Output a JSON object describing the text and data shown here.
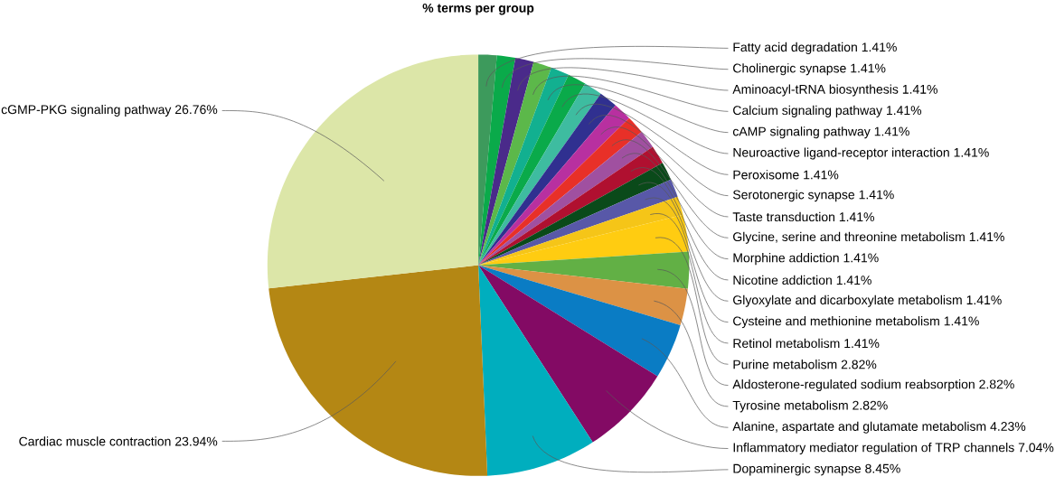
{
  "chart_data": {
    "type": "pie",
    "title": "% terms per group",
    "categories": [
      "Fatty acid degradation",
      "Cholinergic synapse",
      "Aminoacyl-tRNA biosynthesis",
      "Calcium signaling pathway",
      "cAMP signaling pathway",
      "Neuroactive ligand-receptor interaction",
      "Peroxisome",
      "Serotonergic synapse",
      "Taste transduction",
      "Glycine, serine and threonine metabolism",
      "Morphine addiction",
      "Nicotine addiction",
      "Glyoxylate and dicarboxylate metabolism",
      "Cysteine and methionine metabolism",
      "Retinol metabolism",
      "Purine metabolism",
      "Aldosterone-regulated sodium reabsorption",
      "Tyrosine metabolism",
      "Alanine, aspartate and glutamate metabolism",
      "Inflammatory mediator regulation of TRP channels",
      "Dopaminergic synapse",
      "Cardiac muscle contraction",
      "cGMP-PKG signaling pathway"
    ],
    "values": [
      1.41,
      1.41,
      1.41,
      1.41,
      1.41,
      1.41,
      1.41,
      1.41,
      1.41,
      1.41,
      1.41,
      1.41,
      1.41,
      1.41,
      1.41,
      2.82,
      2.82,
      2.82,
      4.23,
      7.04,
      8.45,
      23.94,
      26.76
    ],
    "value_labels": [
      "1.41%",
      "1.41%",
      "1.41%",
      "1.41%",
      "1.41%",
      "1.41%",
      "1.41%",
      "1.41%",
      "1.41%",
      "1.41%",
      "1.41%",
      "1.41%",
      "1.41%",
      "1.41%",
      "1.41%",
      "2.82%",
      "2.82%",
      "2.82%",
      "4.23%",
      "7.04%",
      "8.45%",
      "23.94%",
      "26.76%"
    ],
    "colors": [
      "#3d9a5c",
      "#0aaa4a",
      "#4a2a8a",
      "#5cb84a",
      "#12b090",
      "#0aaa4a",
      "#3ebca0",
      "#303090",
      "#b830a0",
      "#e83028",
      "#a050a0",
      "#b01030",
      "#0a4a1a",
      "#5858a8",
      "#f5c518",
      "#ffcc11",
      "#62b045",
      "#dc9245",
      "#0a7cc4",
      "#830a64",
      "#00aebe",
      "#b48714",
      "#dce6a8"
    ]
  }
}
